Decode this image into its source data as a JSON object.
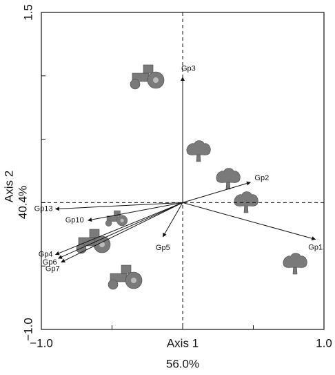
{
  "chart_data": {
    "type": "biplot",
    "xlabel": "Axis 1",
    "xlabel_sub": "56.0%",
    "ylabel": "Axis 2",
    "ylabel_sub": "40.4%",
    "xlim": [
      -1,
      1
    ],
    "ylim": [
      -1,
      1.5
    ],
    "xticks": [
      {
        "value": -1,
        "label": "−1.0"
      },
      {
        "value": 1,
        "label": "1.0"
      }
    ],
    "yticks": [
      {
        "value": -1,
        "label": "−1.0"
      },
      {
        "value": 1.5,
        "label": "1.5"
      }
    ],
    "xminorticks": [
      -0.5,
      0,
      0.5
    ],
    "yminorticks": [
      -0.5,
      0,
      0.5,
      1
    ],
    "vectors": [
      {
        "label": "Gp1",
        "x": 0.94,
        "y": -0.29
      },
      {
        "label": "Gp2",
        "x": 0.48,
        "y": 0.16
      },
      {
        "label": "Gp3",
        "x": 0,
        "y": 0.99
      },
      {
        "label": "Gp4",
        "x": -0.9,
        "y": -0.41
      },
      {
        "label": "Gp5",
        "x": -0.14,
        "y": -0.27
      },
      {
        "label": "Gp6",
        "x": -0.88,
        "y": -0.44
      },
      {
        "label": "Gp7",
        "x": -0.86,
        "y": -0.47
      },
      {
        "label": "Gp10",
        "x": -0.67,
        "y": -0.14
      },
      {
        "label": "Gp13",
        "x": -0.9,
        "y": -0.05
      }
    ],
    "color": "#111111"
  }
}
